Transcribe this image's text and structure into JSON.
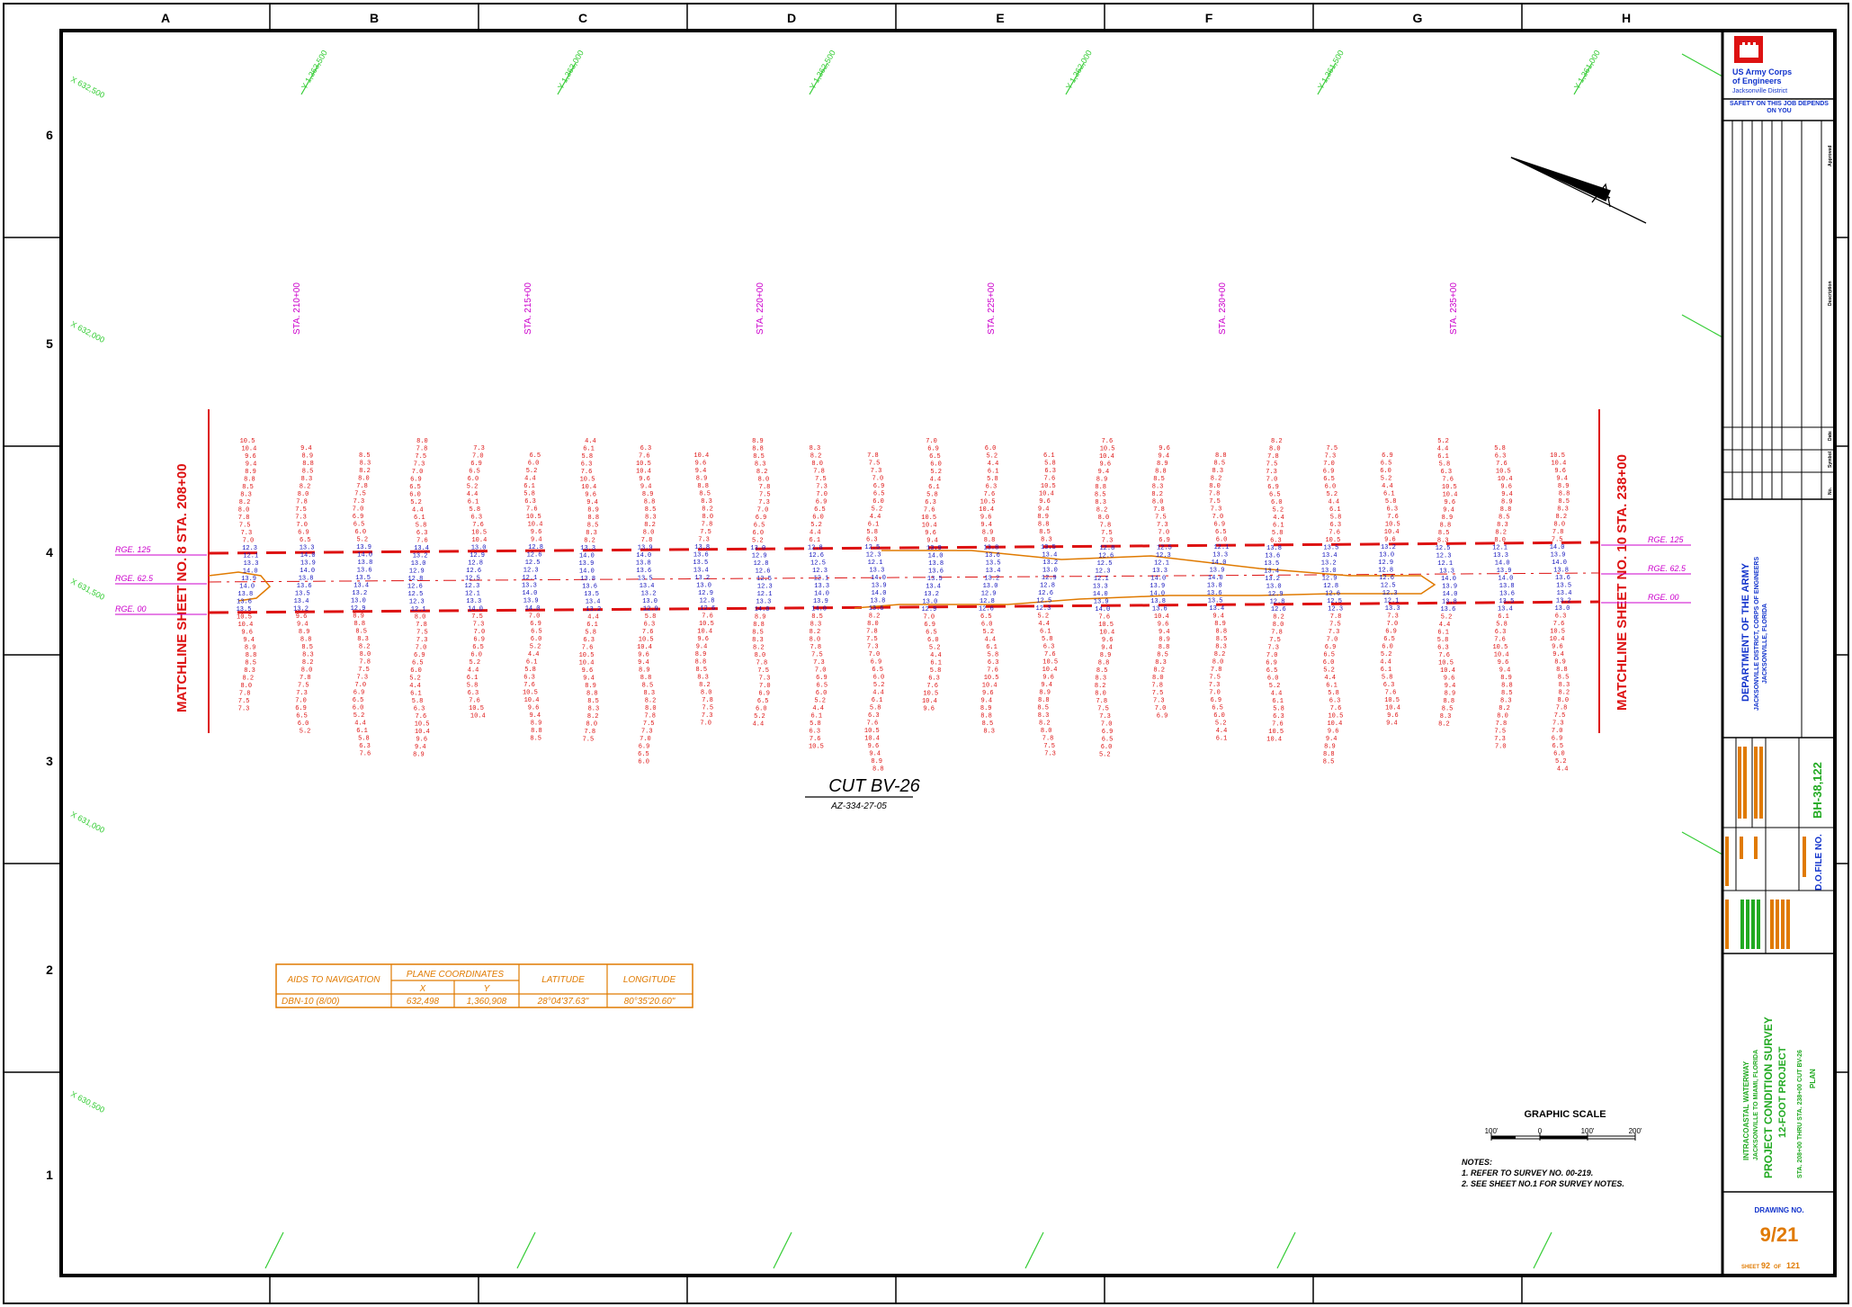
{
  "border": {
    "columns": [
      "A",
      "B",
      "C",
      "D",
      "E",
      "F",
      "G",
      "H"
    ],
    "rows": [
      "6",
      "5",
      "4",
      "3",
      "2",
      "1"
    ]
  },
  "grid_labels": {
    "x_top": [
      "Y 1,363,500",
      "Y 1,363,000",
      "Y 1,362,500",
      "Y 1,362,000",
      "Y 1,361,500",
      "Y 1,361,000"
    ],
    "y_left": [
      "X 632,500",
      "X 632,000",
      "X 631,500",
      "X 631,000",
      "X 630,500"
    ]
  },
  "stations": [
    "STA. 210+00",
    "STA. 215+00",
    "STA. 220+00",
    "STA. 225+00",
    "STA. 230+00",
    "STA. 235+00"
  ],
  "matchlines": {
    "left": "MATCHLINE SHEET NO. 8 STA. 208+00",
    "right": "MATCHLINE SHEET NO. 10 STA. 238+00"
  },
  "range_lines": {
    "left": [
      "RGE. 125",
      "RGE. 62.5",
      "RGE. 00"
    ],
    "right": [
      "RGE. 125",
      "RGE. 62.5",
      "RGE. 00"
    ]
  },
  "soundings": {
    "red_sample": [
      "10.5",
      "10.4",
      "9.6",
      "9.4",
      "8.9",
      "8.8",
      "8.5",
      "8.3",
      "8.2",
      "8.0",
      "7.8",
      "7.5",
      "7.3",
      "7.0",
      "6.9",
      "6.5",
      "6.0",
      "5.2",
      "4.4",
      "6.1",
      "5.8",
      "6.3",
      "7.6"
    ],
    "blue_sample": [
      "13.3",
      "14.0",
      "13.9",
      "14.0",
      "13.8",
      "13.6",
      "13.5",
      "13.4",
      "13.2",
      "13.0",
      "12.9",
      "12.8",
      "12.6",
      "12.5",
      "12.3",
      "12.1"
    ]
  },
  "cut_title": {
    "name": "CUT BV-26",
    "azimuth": "AZ-334-27-05"
  },
  "aids_table": {
    "headers": [
      "AIDS TO NAVIGATION",
      "PLANE COORDINATES",
      "LATITUDE",
      "LONGITUDE"
    ],
    "sub_headers": [
      "X",
      "Y"
    ],
    "row": [
      "DBN-10 (8/00)",
      "632,498",
      "1,360,908",
      "28°04'37.63\"",
      "80°35'20.60\""
    ]
  },
  "graphic_scale": {
    "title": "GRAPHIC SCALE",
    "ticks": [
      "100'",
      "0",
      "100'",
      "200'"
    ]
  },
  "notes": {
    "title": "NOTES:",
    "items": [
      "1. REFER TO SURVEY NO. 00-219.",
      "2. SEE SHEET NO.1 FOR SURVEY NOTES."
    ]
  },
  "title_block": {
    "agency_line1": "US Army Corps",
    "agency_line2": "of Engineers",
    "district": "Jacksonville District",
    "safety": "SAFETY ON THIS JOB DEPENDS ON YOU",
    "revision_headers": [
      "Approved",
      "Description",
      "Date",
      "Symbol",
      "No."
    ],
    "department": [
      "DEPARTMENT OF THE ARMY",
      "JACKSONVILLE DISTRICT, CORPS OF ENGINEERS",
      "JACKSONVILLE, FLORIDA"
    ],
    "file_no_label": "D.O.FILE NO.",
    "file_no": "BH-38,122",
    "project": [
      "INTRACOASTAL WATERWAY",
      "JACKSONVILLE TO MIAMI, FLORIDA",
      "PROJECT CONDITION SURVEY",
      "12-FOOT PROJECT",
      "STA. 208+00 THRU STA. 238+00 CUT BV-26",
      "PLAN"
    ],
    "drawing_no_label": "DRAWING NO.",
    "drawing_no": "9/21",
    "sheet_label": "SHEET",
    "sheet_no": "92",
    "sheet_of": "OF",
    "sheet_total": "121"
  },
  "colors": {
    "border": "#000000",
    "grid": "#33cc33",
    "sounding_red": "#dd1111",
    "sounding_blue": "#1111bb",
    "station": "#cc00cc",
    "orange": "#e07a00",
    "title_blue": "#1133cc",
    "title_green": "#22aa22",
    "logo_red": "#dd1111"
  }
}
